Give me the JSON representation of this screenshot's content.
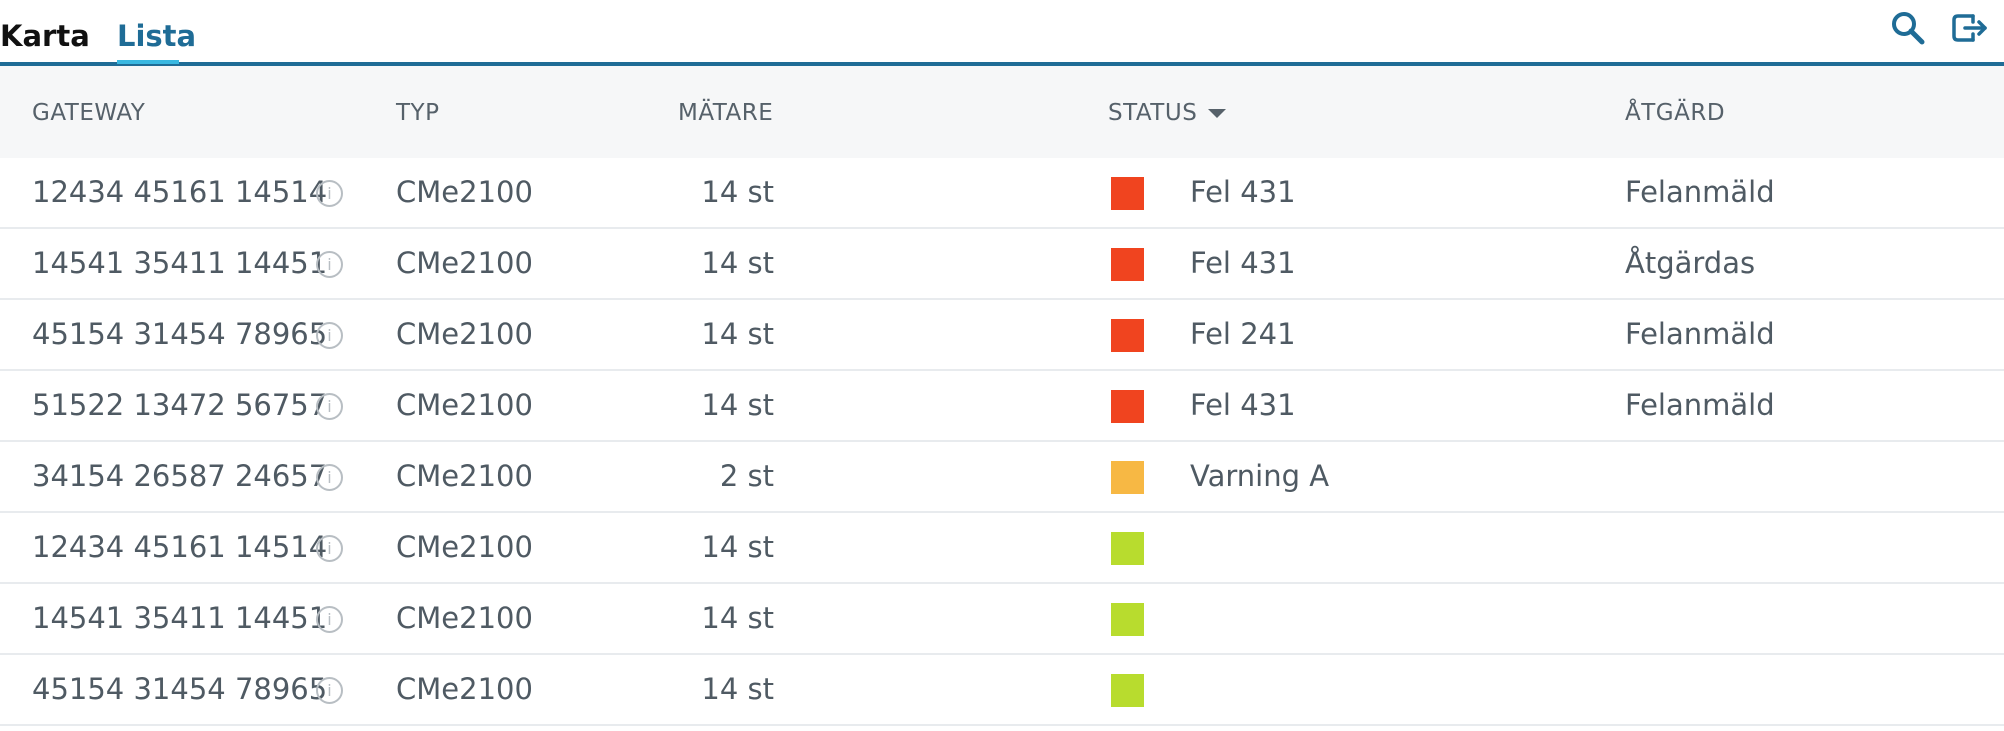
{
  "tabs": [
    {
      "label": "Karta",
      "active": false
    },
    {
      "label": "Lista",
      "active": true
    }
  ],
  "toolbar": {
    "icons": [
      "search-icon",
      "logout-icon"
    ]
  },
  "colors": {
    "brand_blue": "#1f6c96",
    "tab_accent": "#39b8e1",
    "status_error": "#f0441f",
    "status_warning": "#f7b844",
    "status_ok": "#b8dc2e",
    "text": "#4f5a63"
  },
  "table": {
    "headers": {
      "gateway": "GATEWAY",
      "typ": "TYP",
      "matare": "MÄTARE",
      "status": "STATUS",
      "atgard": "ÅTGÄRD"
    },
    "sort": {
      "column": "status",
      "direction": "desc"
    },
    "rows": [
      {
        "gateway": "12434 45161 14514",
        "typ": "CMe2100",
        "matare": "14 st",
        "status_color": "#f0441f",
        "status": "Fel 431",
        "atgard": "Felanmäld"
      },
      {
        "gateway": "14541 35411 14451",
        "typ": "CMe2100",
        "matare": "14 st",
        "status_color": "#f0441f",
        "status": "Fel 431",
        "atgard": "Åtgärdas"
      },
      {
        "gateway": "45154 31454 78965",
        "typ": "CMe2100",
        "matare": "14 st",
        "status_color": "#f0441f",
        "status": "Fel 241",
        "atgard": "Felanmäld"
      },
      {
        "gateway": "51522 13472 56757",
        "typ": "CMe2100",
        "matare": "14 st",
        "status_color": "#f0441f",
        "status": "Fel 431",
        "atgard": "Felanmäld"
      },
      {
        "gateway": "34154 26587 24657",
        "typ": "CMe2100",
        "matare": "2 st",
        "status_color": "#f7b844",
        "status": "Varning A",
        "atgard": ""
      },
      {
        "gateway": "12434 45161 14514",
        "typ": "CMe2100",
        "matare": "14 st",
        "status_color": "#b8dc2e",
        "status": "",
        "atgard": ""
      },
      {
        "gateway": "14541 35411 14451",
        "typ": "CMe2100",
        "matare": "14 st",
        "status_color": "#b8dc2e",
        "status": "",
        "atgard": ""
      },
      {
        "gateway": "45154 31454 78965",
        "typ": "CMe2100",
        "matare": "14 st",
        "status_color": "#b8dc2e",
        "status": "",
        "atgard": ""
      }
    ]
  }
}
